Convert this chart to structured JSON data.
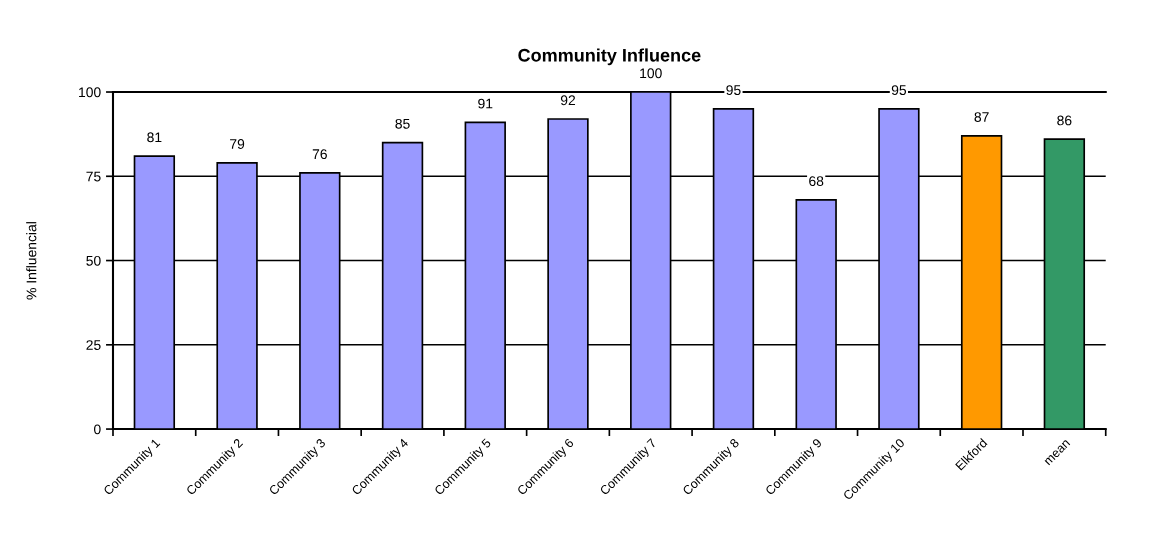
{
  "chart_data": {
    "type": "bar",
    "title": "Community Influence",
    "ylabel": "% Influencial",
    "categories": [
      "Community 1",
      "Community 2",
      "Community 3",
      "Community 4",
      "Community 5",
      "Community 6",
      "Community 7",
      "Community 8",
      "Community 9",
      "Community 10",
      "Elkford",
      "mean"
    ],
    "values": [
      81,
      79,
      76,
      85,
      91,
      92,
      100,
      95,
      68,
      95,
      87,
      86
    ],
    "colors": [
      "#9999ff",
      "#9999ff",
      "#9999ff",
      "#9999ff",
      "#9999ff",
      "#9999ff",
      "#9999ff",
      "#9999ff",
      "#9999ff",
      "#9999ff",
      "#ff9900",
      "#339966"
    ],
    "ylim": [
      0,
      100
    ],
    "yticks": [
      0,
      25,
      50,
      75,
      100
    ],
    "grid": "y",
    "data_labels": true,
    "legend": false
  }
}
